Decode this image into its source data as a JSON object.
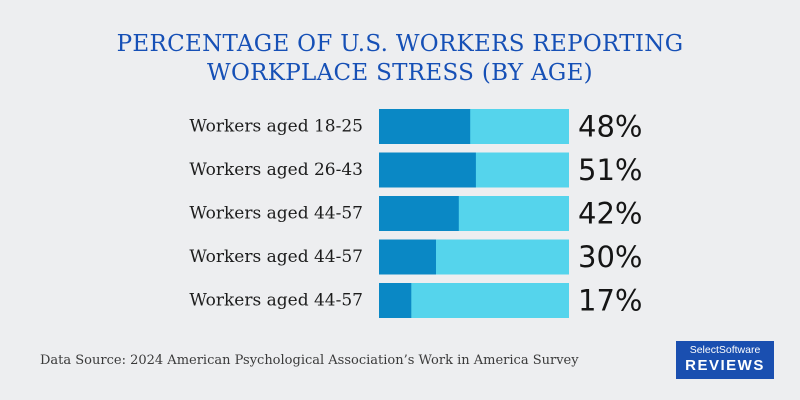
{
  "chart_data": {
    "type": "bar",
    "title": "PERCENTAGE OF U.S. WORKERS REPORTING WORKPLACE STRESS (BY AGE)",
    "title_lines": [
      "PERCENTAGE OF U.S. WORKERS REPORTING",
      "WORKPLACE STRESS (BY AGE)"
    ],
    "categories": [
      "Workers aged 18-25",
      "Workers aged 26-43",
      "Workers aged 44-57",
      "Workers aged 44-57",
      "Workers aged 44-57"
    ],
    "values": [
      48,
      51,
      42,
      30,
      17
    ],
    "value_labels": [
      "48%",
      "51%",
      "42%",
      "30%",
      "17%"
    ],
    "orientation": "horizontal",
    "xlim": [
      0,
      100
    ],
    "grid": false,
    "legend": "none",
    "colors": {
      "value": "#0a88c5",
      "remainder": "#55d4ec"
    }
  },
  "footer": {
    "source": "Data Source: 2024 American Psychological Association’s Work in America Survey"
  },
  "logo": {
    "line1": "SelectSoftware",
    "line2": "REVIEWS"
  },
  "colors": {
    "background": "#edeef0",
    "title": "#1650b6",
    "logo_bg": "#1a4fb0"
  }
}
